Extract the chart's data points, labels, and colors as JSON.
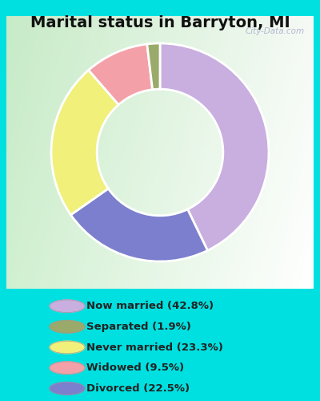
{
  "title": "Marital status in Barryton, MI",
  "categories": [
    "Now married",
    "Divorced",
    "Never married",
    "Widowed",
    "Separated"
  ],
  "values": [
    42.8,
    22.5,
    23.3,
    9.5,
    1.9
  ],
  "colors": [
    "#c9aee0",
    "#7b7fcd",
    "#f0f07a",
    "#f4a0a8",
    "#9aaa6a"
  ],
  "legend_labels": [
    "Now married (42.8%)",
    "Separated (1.9%)",
    "Never married (23.3%)",
    "Widowed (9.5%)",
    "Divorced (22.5%)"
  ],
  "legend_colors": [
    "#c9aee0",
    "#9aaa6a",
    "#f0f07a",
    "#f4a0a8",
    "#7b7fcd"
  ],
  "bg_color_outer": "#00e0e0",
  "bg_color_inner_tl": "#c8e8c8",
  "bg_color_inner_br": "#e8f0e8",
  "watermark": "City-Data.com",
  "title_fontsize": 14,
  "donut_width": 0.42,
  "start_angle": 90
}
